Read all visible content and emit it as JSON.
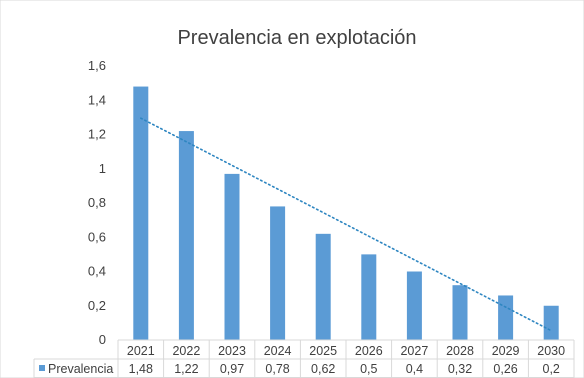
{
  "colors": {
    "bar": "#5b9bd5",
    "trend": "#2e86c1",
    "grid": "#d9d9d9",
    "text": "#404040"
  },
  "chart_data": {
    "type": "bar",
    "title": "Prevalencia en explotación",
    "categories": [
      "2021",
      "2022",
      "2023",
      "2024",
      "2025",
      "2026",
      "2027",
      "2028",
      "2029",
      "2030"
    ],
    "series": [
      {
        "name": "Prevalencia",
        "values": [
          1.48,
          1.22,
          0.97,
          0.78,
          0.62,
          0.5,
          0.4,
          0.32,
          0.26,
          0.2
        ],
        "value_labels": [
          "1,48",
          "1,22",
          "0,97",
          "0,78",
          "0,62",
          "0,5",
          "0,4",
          "0,32",
          "0,26",
          "0,2"
        ]
      }
    ],
    "ylim": [
      0,
      1.6
    ],
    "yticks": [
      0,
      0.2,
      0.4,
      0.6,
      0.8,
      1,
      1.2,
      1.4,
      1.6
    ],
    "ytick_labels": [
      "0",
      "0,2",
      "0,4",
      "0,6",
      "0,8",
      "1",
      "1,2",
      "1,4",
      "1,6"
    ],
    "grid": false,
    "trendline": {
      "type": "linear",
      "style": "dotted"
    },
    "data_table": true,
    "xlabel": "",
    "ylabel": ""
  }
}
